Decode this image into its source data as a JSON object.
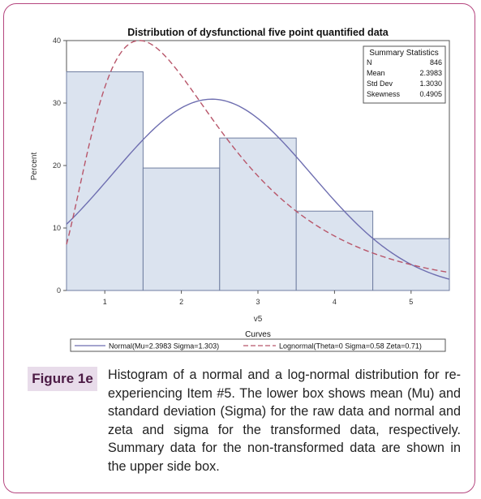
{
  "chart_data": {
    "type": "bar",
    "title": "Distribution of dysfunctional five point quantified data",
    "xlabel": "v5",
    "ylabel": "Percent",
    "x_ticks": [
      1,
      2,
      3,
      4,
      5
    ],
    "y_ticks": [
      0,
      10,
      20,
      30,
      40
    ],
    "xlim": [
      0.5,
      5.5
    ],
    "ylim": [
      0,
      40
    ],
    "bins": [
      {
        "start": 0.5,
        "end": 1.5,
        "value": 35.0
      },
      {
        "start": 1.5,
        "end": 2.5,
        "value": 19.6
      },
      {
        "start": 2.5,
        "end": 3.5,
        "value": 24.4
      },
      {
        "start": 3.5,
        "end": 4.5,
        "value": 12.7
      },
      {
        "start": 4.5,
        "end": 5.5,
        "value": 8.3
      }
    ],
    "curves": [
      {
        "type": "normal",
        "mu": 2.3983,
        "sigma": 1.303,
        "color": "#6e6eb0",
        "style": "solid"
      },
      {
        "type": "lognormal",
        "theta": 0,
        "sigma": 0.58,
        "zeta": 0.71,
        "color": "#b8566a",
        "style": "dashed"
      }
    ],
    "bar_fill": "#dbe3ef",
    "bar_stroke": "#6f7da0",
    "summary": {
      "title": "Summary Statistics",
      "rows": [
        {
          "label": "N",
          "value": "846"
        },
        {
          "label": "Mean",
          "value": "2.3983"
        },
        {
          "label": "Std Dev",
          "value": "1.3030"
        },
        {
          "label": "Skewness",
          "value": "0.4905"
        }
      ]
    },
    "legend": {
      "title": "Curves",
      "entries": [
        {
          "label": "Normal(Mu=2.3983 Sigma=1.303)"
        },
        {
          "label": "Lognormal(Theta=0 Sigma=0.58 Zeta=0.71)"
        }
      ]
    }
  },
  "caption": {
    "tag": "Figure 1e",
    "text": "Histogram of a normal and a log-normal distribution for re-experiencing Item #5. The lower box shows mean (Mu) and standard deviation (Sigma) for the raw data and normal and zeta and sigma for the transformed data, respectively. Summary data for the non-transformed data are shown in the upper side box."
  },
  "colors": {
    "frame_border": "#b5467f",
    "caption_tag_bg": "#e8dcea"
  }
}
